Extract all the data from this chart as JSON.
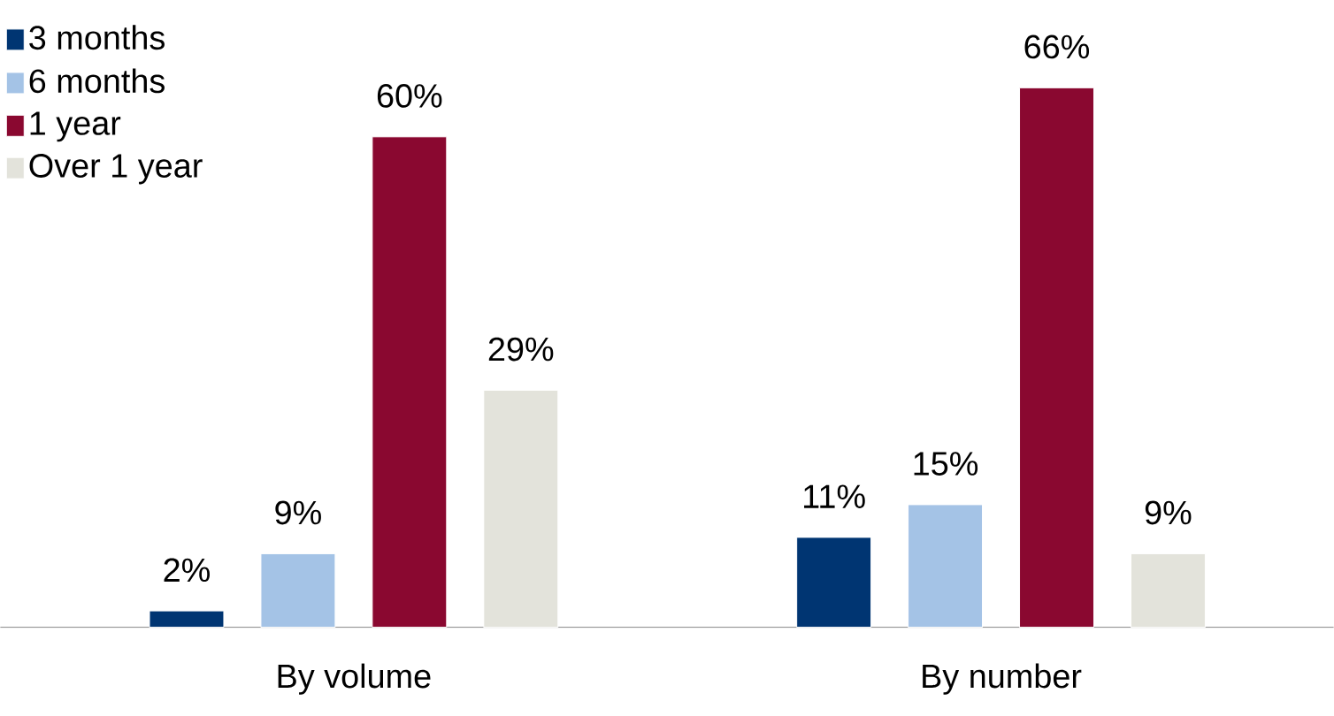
{
  "chart_data": {
    "type": "bar",
    "categories": [
      "By volume",
      "By number"
    ],
    "series": [
      {
        "name": "3 months",
        "color": "#003572",
        "values": [
          2,
          11
        ],
        "value_labels": [
          "2%",
          "11%"
        ]
      },
      {
        "name": "6 months",
        "color": "#a4c3e6",
        "values": [
          9,
          15
        ],
        "value_labels": [
          "9%",
          "15%"
        ]
      },
      {
        "name": "1 year",
        "color": "#8a0830",
        "values": [
          60,
          66
        ],
        "value_labels": [
          "60%",
          "66%"
        ]
      },
      {
        "name": "Over 1 year",
        "color": "#e3e3db",
        "values": [
          29,
          9
        ],
        "value_labels": [
          "29%",
          "9%"
        ]
      }
    ],
    "legend": "top left"
  }
}
